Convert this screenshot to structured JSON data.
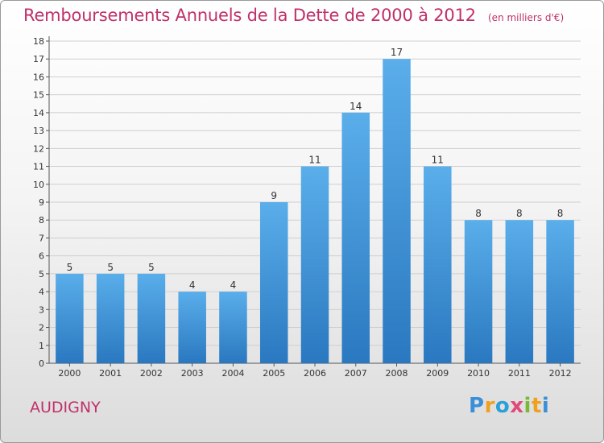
{
  "chart_data": {
    "type": "bar",
    "title": "Remboursements Annuels de la Dette de 2000 à 2012",
    "unit_note": "(en milliers d'€)",
    "categories": [
      "2000",
      "2001",
      "2002",
      "2003",
      "2004",
      "2005",
      "2006",
      "2007",
      "2008",
      "2009",
      "2010",
      "2011",
      "2012"
    ],
    "values": [
      5,
      5,
      5,
      4,
      4,
      9,
      11,
      14,
      17,
      11,
      8,
      8,
      8
    ],
    "ylim": [
      0,
      18
    ],
    "yticks": [
      0,
      1,
      2,
      3,
      4,
      5,
      6,
      7,
      8,
      9,
      10,
      11,
      12,
      13,
      14,
      15,
      16,
      17,
      18
    ],
    "grid": true,
    "bar_color": "#4a9fe0"
  },
  "commune": "AUDIGNY",
  "logo_text": "Proxiti"
}
